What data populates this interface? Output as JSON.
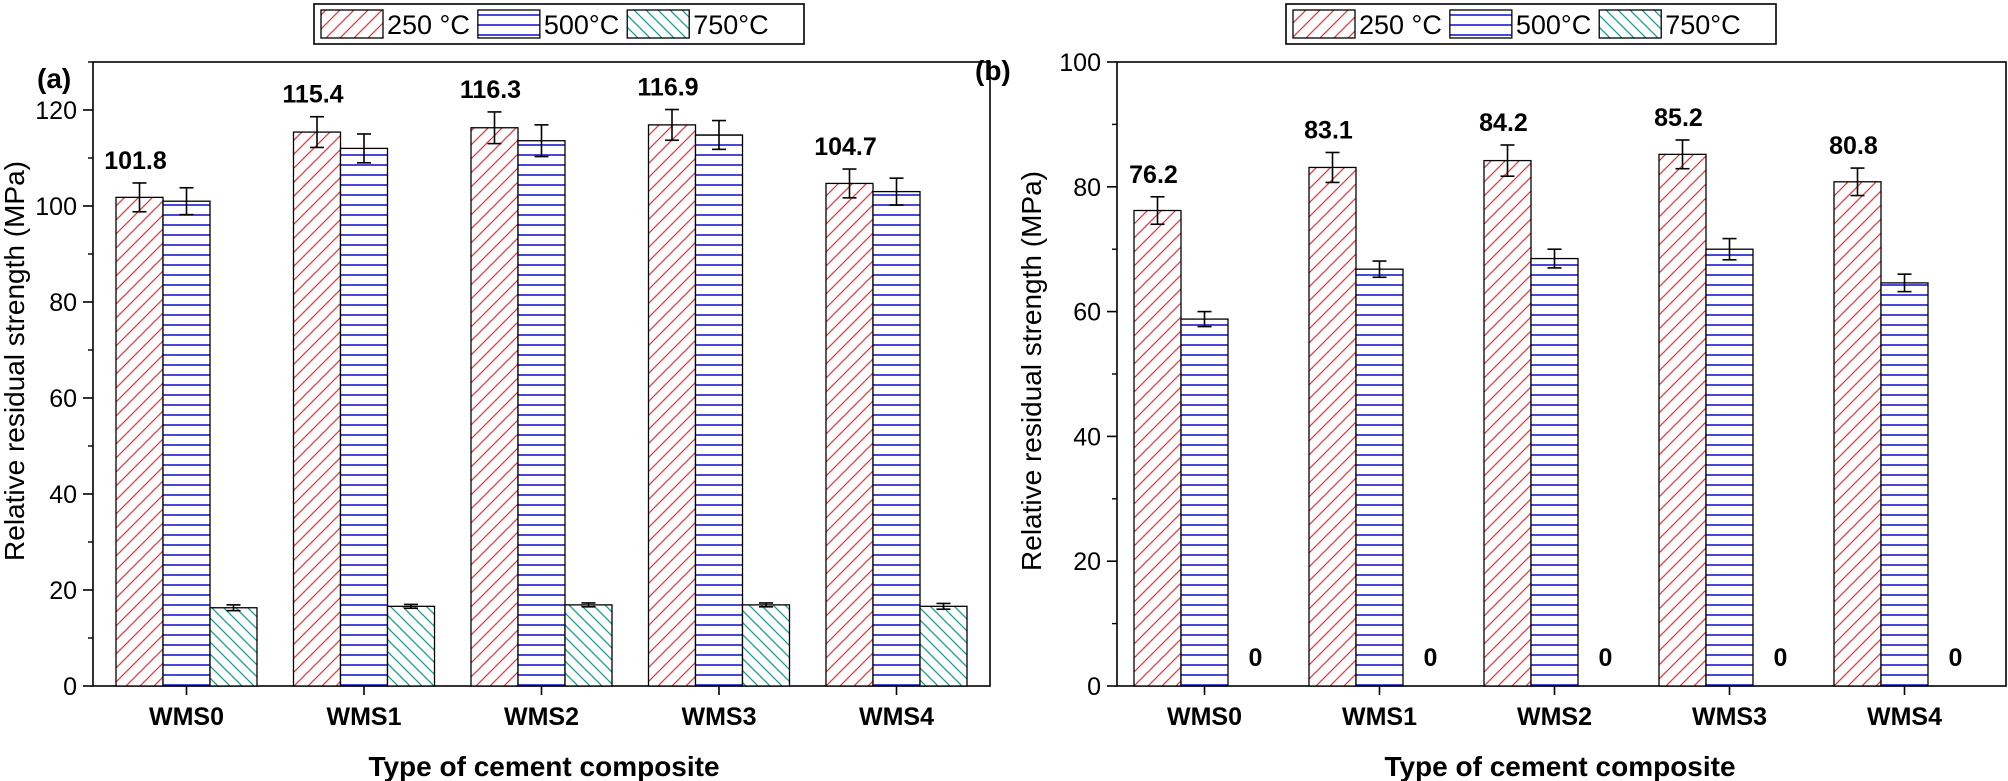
{
  "chart_data": [
    {
      "type": "bar",
      "panel_label": "(a)",
      "categories": [
        "WMS0",
        "WMS1",
        "WMS2",
        "WMS3",
        "WMS4"
      ],
      "series": [
        {
          "name": "250 °C",
          "values": [
            101.8,
            115.4,
            116.3,
            116.9,
            104.7
          ],
          "errors": [
            3.0,
            3.2,
            3.3,
            3.2,
            3.0
          ]
        },
        {
          "name": "500°C",
          "values": [
            101.0,
            112.0,
            113.6,
            114.8,
            103.0
          ],
          "errors": [
            2.8,
            3.0,
            3.3,
            3.0,
            2.8
          ]
        },
        {
          "name": "750°C",
          "values": [
            16.3,
            16.6,
            16.9,
            16.9,
            16.6
          ],
          "errors": [
            0.6,
            0.4,
            0.4,
            0.4,
            0.6
          ]
        }
      ],
      "data_labels": [
        "101.8",
        "115.4",
        "116.3",
        "116.9",
        "104.7"
      ],
      "xlabel": "Type of cement composite",
      "ylabel": "Relative residual strength  (MPa)",
      "ylim": [
        0,
        130
      ],
      "yticks": [
        0,
        20,
        40,
        60,
        80,
        100,
        120
      ],
      "legend_position": "top-center",
      "grid": false
    },
    {
      "type": "bar",
      "panel_label": "(b)",
      "categories": [
        "WMS0",
        "WMS1",
        "WMS2",
        "WMS3",
        "WMS4"
      ],
      "series": [
        {
          "name": "250 °C",
          "values": [
            76.2,
            83.1,
            84.2,
            85.2,
            80.8
          ],
          "errors": [
            2.2,
            2.4,
            2.5,
            2.3,
            2.2
          ]
        },
        {
          "name": "500°C",
          "values": [
            58.8,
            66.8,
            68.5,
            70.0,
            64.6
          ],
          "errors": [
            1.2,
            1.3,
            1.5,
            1.7,
            1.4
          ]
        },
        {
          "name": "750°C",
          "values": [
            0,
            0,
            0,
            0,
            0
          ],
          "errors": [
            0,
            0,
            0,
            0,
            0
          ]
        }
      ],
      "data_labels": [
        "76.2",
        "83.1",
        "84.2",
        "85.2",
        "80.8"
      ],
      "zero_labels": [
        "0",
        "0",
        "0",
        "0",
        "0"
      ],
      "xlabel": "Type of cement composite",
      "ylabel": "Relative residual strength  (MPa)",
      "ylim": [
        0,
        100
      ],
      "yticks": [
        0,
        20,
        40,
        60,
        80,
        100
      ],
      "legend_position": "top-center",
      "grid": false
    }
  ],
  "colors": {
    "series_250": "#e8383d",
    "series_500": "#1a1ad0",
    "series_750": "#1f9a8c",
    "axis": "#000000"
  }
}
